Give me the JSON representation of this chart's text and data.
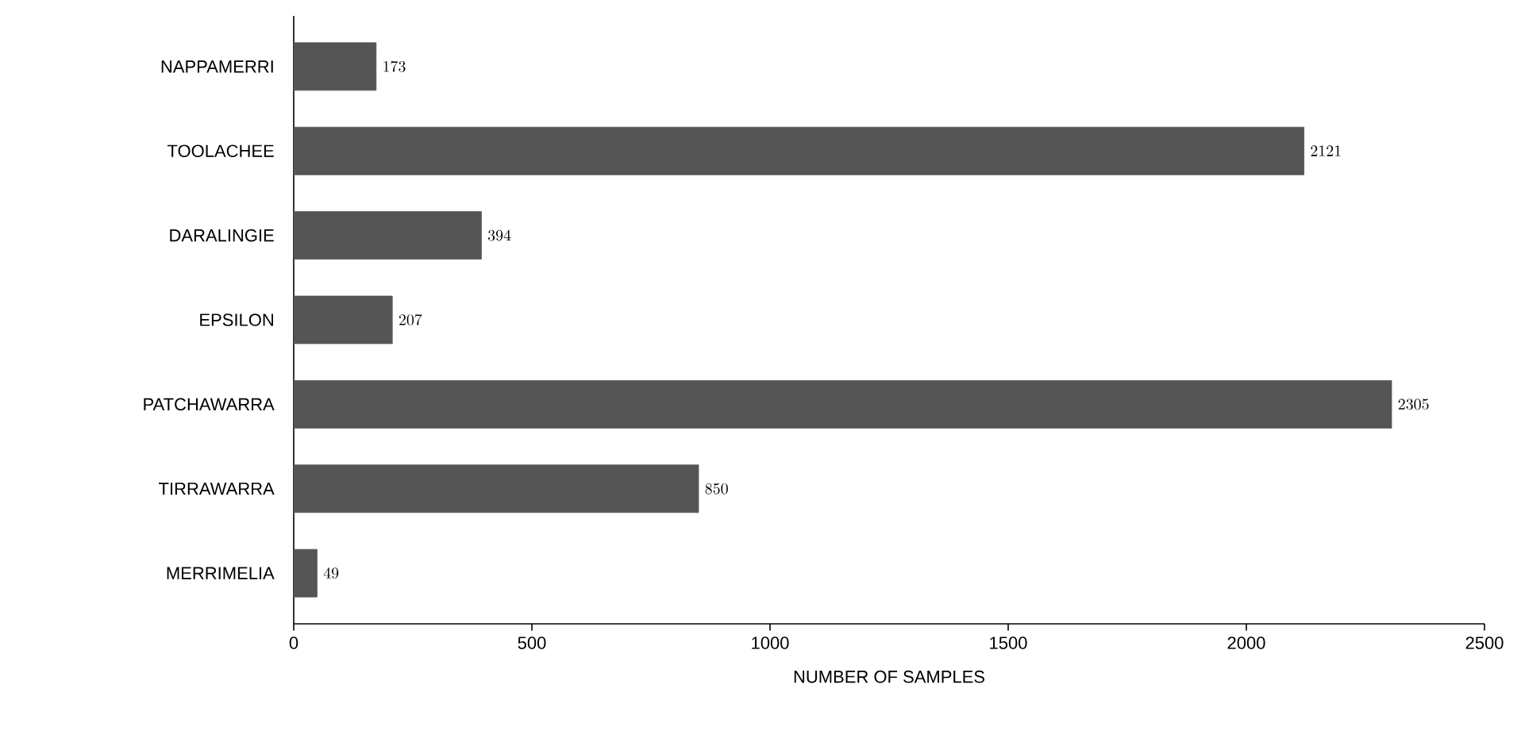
{
  "chart_data": {
    "type": "bar",
    "orientation": "horizontal",
    "xlabel": "NUMBER OF SAMPLES",
    "categories": [
      "NAPPAMERRI",
      "TOOLACHEE",
      "DARALINGIE",
      "EPSILON",
      "PATCHAWARRA",
      "TIRRAWARRA",
      "MERRIMELIA"
    ],
    "values": [
      173,
      2121,
      394,
      207,
      2305,
      850,
      49
    ],
    "color": "#555555",
    "data_labels": true,
    "xlim": [
      0,
      2500
    ],
    "xticks": [
      0,
      500,
      1000,
      1500,
      2000,
      2500
    ]
  }
}
